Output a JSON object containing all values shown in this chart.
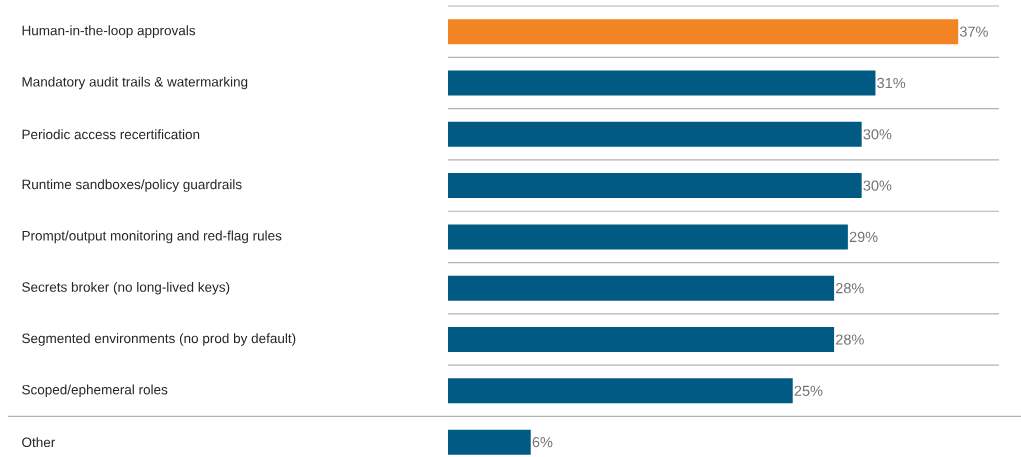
{
  "chart_data": {
    "type": "bar",
    "orientation": "horizontal",
    "grid": "y",
    "categories": [
      "Human-in-the-loop approvals",
      "Mandatory audit trails & watermarking",
      "Periodic access recertification",
      "Runtime sandboxes/policy guardrails",
      "Prompt/output monitoring and red-flag rules",
      "Secrets broker (no long-lived keys)",
      "Segmented environments (no prod by default)",
      "Scoped/ephemeral roles",
      "Other"
    ],
    "values": [
      37,
      31,
      30,
      30,
      29,
      28,
      28,
      25,
      6
    ],
    "colors": [
      "#f28423",
      "#005a84",
      "#005a84",
      "#005a84",
      "#005a84",
      "#005a84",
      "#005a84",
      "#005a84",
      "#005a84"
    ],
    "value_labels": [
      "37%",
      "31%",
      "30%",
      "30%",
      "29%",
      "28%",
      "28%",
      "25%",
      "6%"
    ]
  }
}
